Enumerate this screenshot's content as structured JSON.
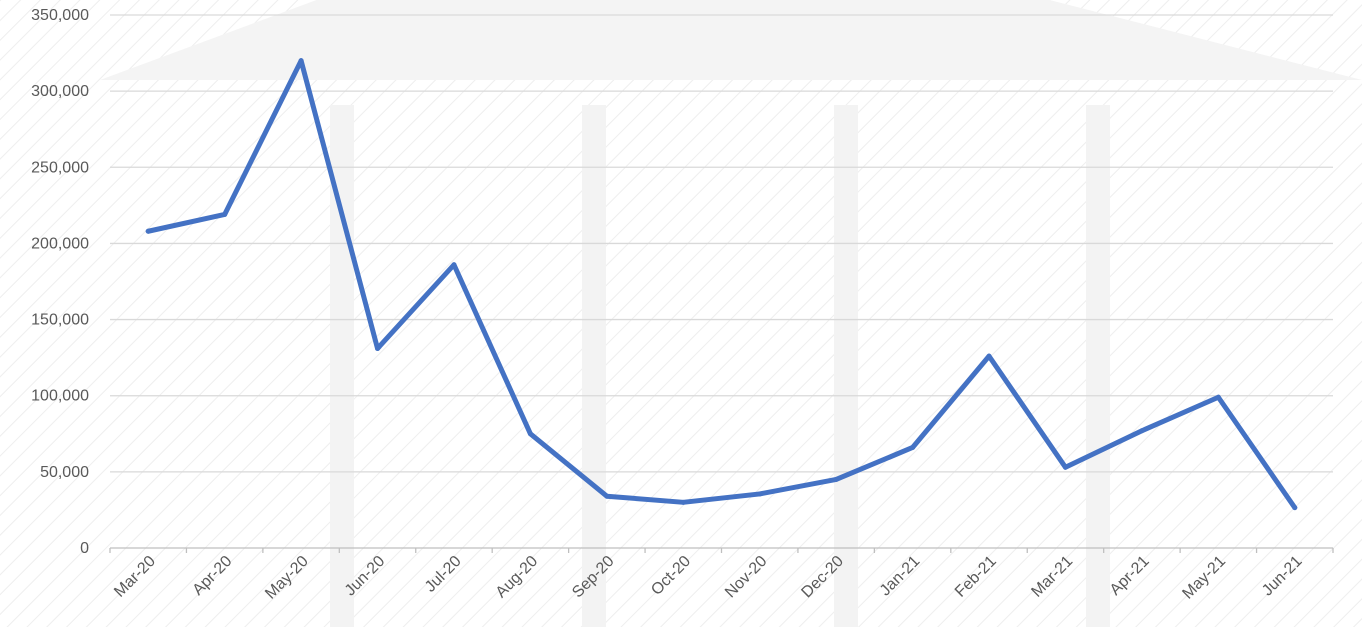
{
  "chart_data": {
    "type": "line",
    "title": "",
    "xlabel": "",
    "ylabel": "",
    "categories": [
      "Mar-20",
      "Apr-20",
      "May-20",
      "Jun-20",
      "Jul-20",
      "Aug-20",
      "Sep-20",
      "Oct-20",
      "Nov-20",
      "Dec-20",
      "Jan-21",
      "Feb-21",
      "Mar-21",
      "Apr-21",
      "May-21",
      "Jun-21"
    ],
    "series": [
      {
        "values": [
          208000,
          219000,
          320000,
          131000,
          186000,
          75000,
          34000,
          30000,
          35500,
          45000,
          66000,
          126000,
          53000,
          77000,
          99000,
          26500
        ],
        "color": "#4472C4"
      }
    ],
    "ylim": [
      0,
      350000
    ],
    "y_ticks": [
      0,
      50000,
      100000,
      150000,
      200000,
      250000,
      300000,
      350000
    ],
    "y_tick_labels": [
      "0",
      "50,000",
      "100,000",
      "150,000",
      "200,000",
      "250,000",
      "300,000",
      "350,000"
    ],
    "grid": true,
    "legend": "none",
    "colors": {
      "line": "#4472C4",
      "grid": "#d9d9d9",
      "axis": "#bfbfbf",
      "text": "#595959",
      "background_pattern": "#f2f2f2"
    }
  }
}
